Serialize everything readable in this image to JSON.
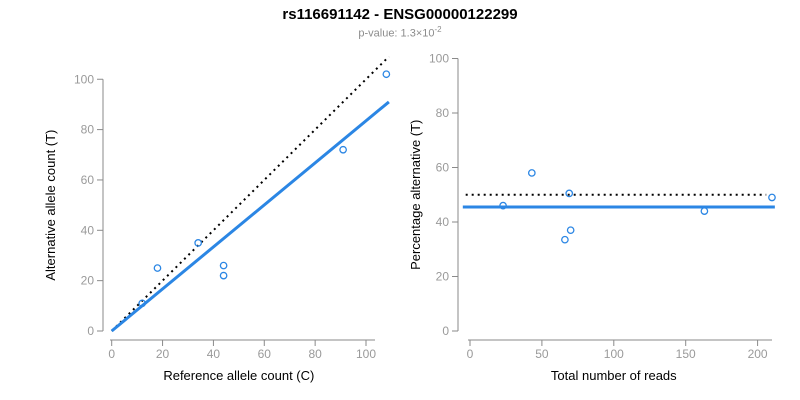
{
  "title": "rs116691142 - ENSG00000122299",
  "subtitle": {
    "prefix": "p-value: 1.3×10",
    "exponent": "-2"
  },
  "colors": {
    "accent_blue": "#2B86E4",
    "axis_line_gray": "#8a8a8a",
    "tick_label_gray": "#9a9a9a",
    "label_black": "#000000",
    "dotted_line_black": "#000000",
    "subtitle_gray": "#8c8c8c",
    "background": "#ffffff"
  },
  "chart_data": [
    {
      "type": "scatter",
      "panel": "left",
      "xlabel": "Reference allele count (C)",
      "ylabel": "Alternative allele count (T)",
      "xticks": [
        0,
        20,
        40,
        60,
        80,
        100
      ],
      "yticks": [
        0,
        20,
        40,
        60,
        80,
        100
      ],
      "xlim": [
        0,
        109
      ],
      "ylim": [
        0,
        109
      ],
      "grid": false,
      "points": [
        [
          12,
          11
        ],
        [
          18,
          25
        ],
        [
          34,
          35
        ],
        [
          44,
          22
        ],
        [
          44,
          26
        ],
        [
          91,
          72
        ],
        [
          108,
          102
        ]
      ],
      "lines": [
        {
          "name": "identity-line",
          "style": "dotted",
          "x1": 0,
          "y1": 0,
          "x2": 109,
          "y2": 109
        },
        {
          "name": "fit-line",
          "style": "solid",
          "slope": 0.835,
          "x1": 0,
          "y1": 0,
          "x2": 109,
          "y2": 91
        }
      ]
    },
    {
      "type": "scatter",
      "panel": "right",
      "xlabel": "Total number of reads",
      "ylabel": "Percentage alternative (T)",
      "xticks": [
        0,
        50,
        100,
        150,
        200
      ],
      "yticks": [
        0,
        20,
        40,
        60,
        80,
        100
      ],
      "xlim": [
        0,
        212
      ],
      "ylim": [
        0,
        100
      ],
      "grid": false,
      "points": [
        [
          23,
          46
        ],
        [
          43,
          58
        ],
        [
          66,
          33.5
        ],
        [
          69,
          50.5
        ],
        [
          70,
          37
        ],
        [
          163,
          44
        ],
        [
          210,
          49
        ]
      ],
      "lines": [
        {
          "name": "null-line",
          "style": "dotted",
          "x1": -3,
          "y1": 50,
          "x2": 206,
          "y2": 50
        },
        {
          "name": "fit-line",
          "style": "solid",
          "value": 45.5,
          "x1": -5,
          "y1": 45.5,
          "x2": 212,
          "y2": 45.5
        }
      ]
    }
  ]
}
